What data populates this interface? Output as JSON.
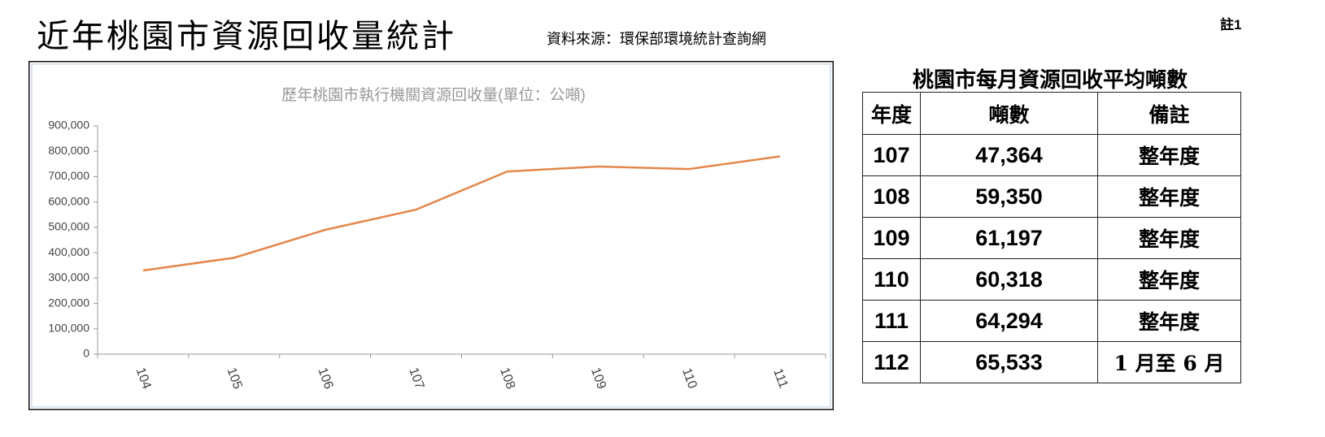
{
  "header": {
    "title": "近年桃園市資源回收量統計",
    "source": "資料來源：環保部環境統計查詢網",
    "note": "註1"
  },
  "chart_data": {
    "type": "line",
    "title": "歷年桃園市執行機關資源回收量(單位：公噸)",
    "categories": [
      "104",
      "105",
      "106",
      "107",
      "108",
      "109",
      "110",
      "111"
    ],
    "values": [
      330000,
      380000,
      490000,
      570000,
      720000,
      740000,
      730000,
      780000
    ],
    "color": "#e3874a",
    "ylim": [
      0,
      900000
    ],
    "yticks": [
      0,
      {
        "value": 100000,
        "label": "100,000"
      },
      {
        "value": 200000,
        "label": "200,000"
      },
      {
        "value": 300000,
        "label": "300,000"
      },
      {
        "value": 400000,
        "label": "400,000"
      },
      {
        "value": 500000,
        "label": "500,000"
      },
      {
        "value": 600000,
        "label": "600,000"
      },
      {
        "value": 700000,
        "label": "700,000"
      },
      {
        "value": 800000,
        "label": "800,000"
      },
      {
        "value": 900000,
        "label": "900,000"
      }
    ],
    "grid": false
  },
  "table": {
    "title": "桃園市每月資源回收平均噸數",
    "columns": [
      "年度",
      "噸數",
      "備註"
    ],
    "rows": [
      [
        "107",
        "47,364",
        "整年度"
      ],
      [
        "108",
        "59,350",
        "整年度"
      ],
      [
        "109",
        "61,197",
        "整年度"
      ],
      [
        "110",
        "60,318",
        "整年度"
      ],
      [
        "111",
        "64,294",
        "整年度"
      ],
      [
        "112",
        "65,533",
        "1 月至 6 月"
      ]
    ]
  }
}
